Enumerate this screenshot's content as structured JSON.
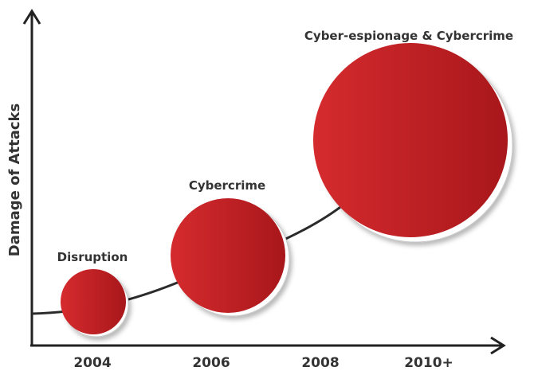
{
  "y_axis_label": "Damage of Attacks",
  "x_ticks": [
    "2004",
    "2006",
    "2008",
    "2010+"
  ],
  "phases": [
    {
      "label": "Disruption"
    },
    {
      "label": "Cybercrime"
    },
    {
      "label": "Cyber-espionage & Cybercrime"
    }
  ],
  "colors": {
    "bubble_light": "#d52b2e",
    "bubble_dark": "#a8171b",
    "axis": "#222222",
    "text": "#333333"
  }
}
